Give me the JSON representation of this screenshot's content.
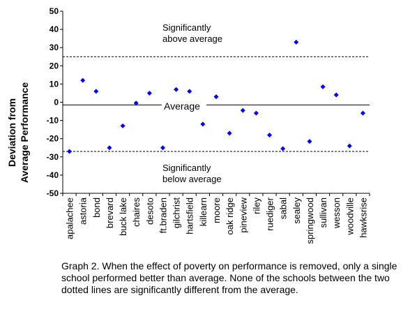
{
  "chart_data": {
    "type": "scatter",
    "title": "",
    "xlabel": "",
    "ylabel": [
      "Deviation from",
      "Average Performance"
    ],
    "ylim": [
      -50,
      50
    ],
    "yticks": [
      -50,
      -40,
      -30,
      -20,
      -10,
      0,
      10,
      20,
      30,
      40,
      50
    ],
    "grid": false,
    "marker_color": "#0000ff",
    "categories": [
      "apalachee",
      "astoria",
      "bond",
      "brevard",
      "buck lake",
      "chaires",
      "desoto",
      "ft.braden",
      "gilchrist",
      "hartsfield",
      "killearn",
      "moore",
      "oak ridge",
      "pineview",
      "riley",
      "ruediger",
      "sabal",
      "sealey",
      "springwood",
      "sullivan",
      "wesson",
      "woodville",
      "hawksrise"
    ],
    "values": [
      -27,
      12,
      6,
      -25,
      -13,
      -0.5,
      5,
      -25,
      7,
      6,
      -12,
      3,
      -17,
      -4.5,
      -6,
      -18,
      -25.5,
      33,
      -21.5,
      8.5,
      4,
      -24,
      -6
    ],
    "reference_lines": [
      {
        "y": 25,
        "style": "dotted"
      },
      {
        "y": -1.5,
        "style": "solid"
      },
      {
        "y": -27,
        "style": "dotted"
      }
    ],
    "annotations": {
      "above": [
        "Significantly",
        "above average"
      ],
      "average": "Average",
      "below": [
        "Significantly",
        "below average"
      ]
    }
  },
  "caption": "Graph 2.  When the effect of poverty on performance is removed, only a single school performed better than average.  None of the schools between the two dotted lines are significantly different from the average."
}
